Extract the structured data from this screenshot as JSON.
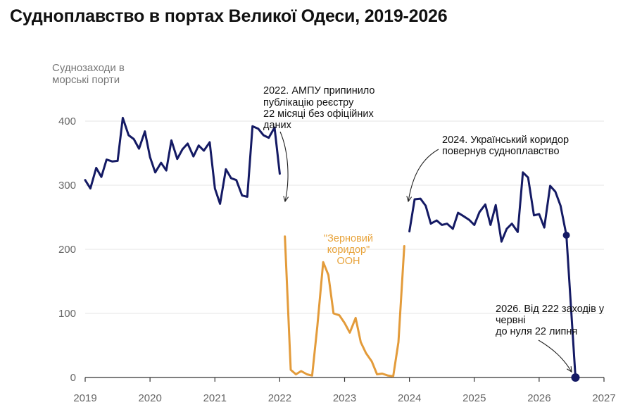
{
  "title": "Судноплавство в портах Великої Одеси, 2019-2026",
  "chart_data": {
    "type": "line",
    "title": "Судноплавство в портах Великої Одеси, 2019-2026",
    "ylabel_lines": [
      "Суднозаходи в",
      "морські порти"
    ],
    "xlim": [
      2019,
      2027
    ],
    "ylim": [
      0,
      420
    ],
    "xticks": [
      2019,
      2020,
      2021,
      2022,
      2023,
      2024,
      2025,
      2026,
      2027
    ],
    "yticks": [
      0,
      100,
      200,
      300,
      400
    ],
    "grid": "horizontal",
    "colors": {
      "navy": "#141a64",
      "orange": "#e39b3a",
      "grid": "#e6e6e6",
      "axis": "#333333"
    },
    "series": [
      {
        "color": "#141a64",
        "points": [
          [
            2019.0,
            308
          ],
          [
            2019.08,
            295
          ],
          [
            2019.17,
            327
          ],
          [
            2019.25,
            313
          ],
          [
            2019.33,
            340
          ],
          [
            2019.42,
            337
          ],
          [
            2019.5,
            338
          ],
          [
            2019.58,
            405
          ],
          [
            2019.67,
            378
          ],
          [
            2019.75,
            372
          ],
          [
            2019.83,
            357
          ],
          [
            2019.92,
            384
          ],
          [
            2020.0,
            344
          ],
          [
            2020.08,
            320
          ],
          [
            2020.17,
            335
          ],
          [
            2020.25,
            323
          ],
          [
            2020.33,
            370
          ],
          [
            2020.42,
            341
          ],
          [
            2020.5,
            356
          ],
          [
            2020.58,
            365
          ],
          [
            2020.67,
            345
          ],
          [
            2020.75,
            362
          ],
          [
            2020.83,
            354
          ],
          [
            2020.92,
            367
          ],
          [
            2021.0,
            295
          ],
          [
            2021.08,
            271
          ],
          [
            2021.17,
            325
          ],
          [
            2021.25,
            311
          ],
          [
            2021.33,
            308
          ],
          [
            2021.42,
            284
          ],
          [
            2021.5,
            282
          ],
          [
            2021.58,
            392
          ],
          [
            2021.67,
            388
          ],
          [
            2021.75,
            378
          ],
          [
            2021.83,
            374
          ],
          [
            2021.92,
            390
          ],
          [
            2022.0,
            318
          ]
        ]
      },
      {
        "color": "#e39b3a",
        "points": [
          [
            2022.08,
            220
          ],
          [
            2022.17,
            12
          ],
          [
            2022.25,
            5
          ],
          [
            2022.33,
            10
          ],
          [
            2022.42,
            5
          ],
          [
            2022.5,
            3
          ],
          [
            2022.58,
            80
          ],
          [
            2022.67,
            180
          ],
          [
            2022.75,
            160
          ],
          [
            2022.83,
            100
          ],
          [
            2022.92,
            97
          ],
          [
            2023.0,
            85
          ],
          [
            2023.08,
            70
          ],
          [
            2023.17,
            93
          ],
          [
            2023.25,
            55
          ],
          [
            2023.33,
            38
          ],
          [
            2023.42,
            25
          ],
          [
            2023.5,
            5
          ],
          [
            2023.58,
            6
          ],
          [
            2023.67,
            3
          ],
          [
            2023.75,
            2
          ],
          [
            2023.83,
            55
          ],
          [
            2023.92,
            205
          ]
        ]
      },
      {
        "color": "#141a64",
        "points": [
          [
            2024.0,
            228
          ],
          [
            2024.08,
            278
          ],
          [
            2024.17,
            279
          ],
          [
            2024.25,
            268
          ],
          [
            2024.33,
            240
          ],
          [
            2024.42,
            245
          ],
          [
            2024.5,
            238
          ],
          [
            2024.58,
            240
          ],
          [
            2024.67,
            232
          ],
          [
            2024.75,
            257
          ],
          [
            2024.83,
            252
          ],
          [
            2024.92,
            246
          ],
          [
            2025.0,
            238
          ],
          [
            2025.08,
            258
          ],
          [
            2025.17,
            270
          ],
          [
            2025.25,
            238
          ],
          [
            2025.33,
            269
          ],
          [
            2025.42,
            212
          ],
          [
            2025.5,
            232
          ],
          [
            2025.58,
            240
          ],
          [
            2025.67,
            227
          ],
          [
            2025.75,
            320
          ],
          [
            2025.83,
            312
          ],
          [
            2025.92,
            253
          ],
          [
            2026.0,
            255
          ],
          [
            2026.08,
            234
          ],
          [
            2026.17,
            299
          ],
          [
            2026.25,
            290
          ],
          [
            2026.33,
            268
          ],
          [
            2026.42,
            222
          ],
          [
            2026.56,
            0
          ]
        ]
      }
    ],
    "markers": [
      {
        "x": 2026.42,
        "y": 222,
        "color": "#141a64"
      },
      {
        "x": 2026.56,
        "y": 0,
        "color": "#141a64"
      }
    ],
    "annotations": [
      {
        "lines": [
          "2022. АМПУ припинило",
          "публікацію реєстру",
          "22 місяці без офіційних",
          "даних"
        ]
      },
      {
        "lines": [
          "\"Зерновий",
          "коридор\"",
          "ООН"
        ],
        "color": "#e8a33a"
      },
      {
        "lines": [
          "2024. Український коридор",
          "повернув судноплавство"
        ]
      },
      {
        "lines": [
          "2026. Від 222 заходів у",
          "червні",
          "до нуля 22 липня"
        ]
      }
    ]
  }
}
